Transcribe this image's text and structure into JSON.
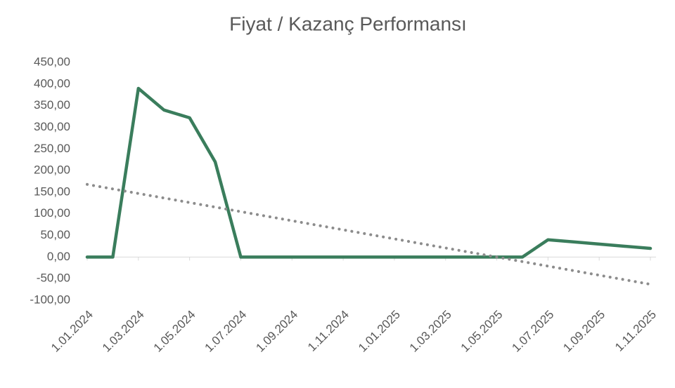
{
  "chart_data": {
    "type": "line",
    "title": "Fiyat / Kazanç Performansı",
    "x": [
      "1.01.2024",
      "1.02.2024",
      "1.03.2024",
      "1.04.2024",
      "1.05.2024",
      "1.06.2024",
      "1.07.2024",
      "1.08.2024",
      "1.09.2024",
      "1.10.2024",
      "1.11.2024",
      "1.12.2024",
      "1.01.2025",
      "1.02.2025",
      "1.03.2025",
      "1.04.2025",
      "1.05.2025",
      "1.06.2025",
      "1.07.2025",
      "1.08.2025",
      "1.09.2025",
      "1.10.2025",
      "1.11.2025"
    ],
    "series": [
      {
        "color": "#3a7d5c",
        "style": "solid",
        "values": [
          0,
          0,
          390,
          340,
          322,
          220,
          0,
          0,
          0,
          0,
          0,
          0,
          0,
          0,
          0,
          0,
          0,
          0,
          40,
          35,
          30,
          25,
          20
        ]
      },
      {
        "color": "#8c8c8c",
        "style": "dotted",
        "values": [
          168,
          157.5,
          147,
          136.5,
          126,
          115.5,
          105,
          94.5,
          84,
          73.5,
          63,
          52.5,
          42,
          31.5,
          21,
          10.5,
          0,
          -10.5,
          -21,
          -31.5,
          -42,
          -52.5,
          -63
        ]
      }
    ],
    "xlim": [
      "1.01.2024",
      "1.11.2025"
    ],
    "xticks": [
      "1.01.2024",
      "1.03.2024",
      "1.05.2024",
      "1.07.2024",
      "1.09.2024",
      "1.11.2024",
      "1.01.2025",
      "1.03.2025",
      "1.05.2025",
      "1.07.2025",
      "1.09.2025",
      "1.11.2025"
    ],
    "ylim": [
      -100,
      450
    ],
    "yticks": [
      {
        "value": -100,
        "label": "-100,00"
      },
      {
        "value": -50,
        "label": "-50,00"
      },
      {
        "value": 0,
        "label": "0,00"
      },
      {
        "value": 50,
        "label": "50,00"
      },
      {
        "value": 100,
        "label": "100,00"
      },
      {
        "value": 150,
        "label": "150,00"
      },
      {
        "value": 200,
        "label": "200,00"
      },
      {
        "value": 250,
        "label": "250,00"
      },
      {
        "value": 300,
        "label": "300,00"
      },
      {
        "value": 350,
        "label": "350,00"
      },
      {
        "value": 400,
        "label": "400,00"
      },
      {
        "value": 450,
        "label": "450,00"
      }
    ],
    "grid": false
  }
}
